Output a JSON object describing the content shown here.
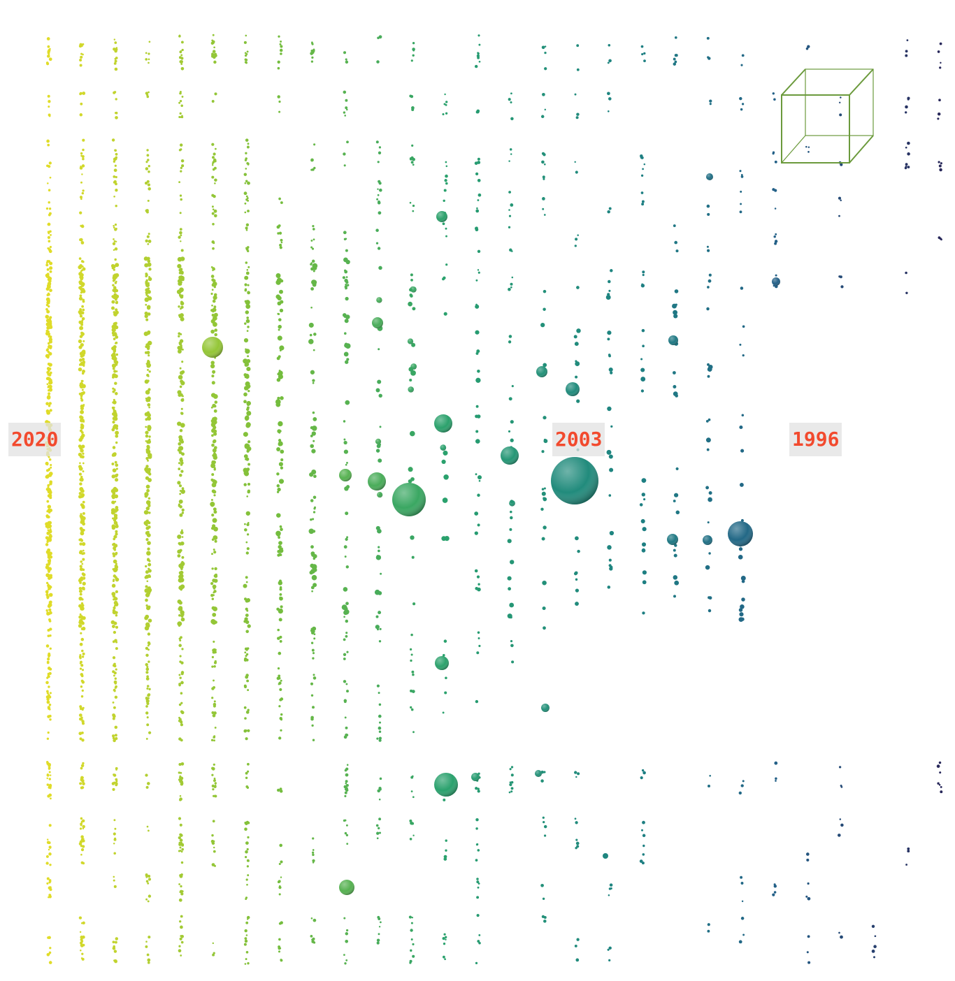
{
  "year_labels": [
    "2020",
    "2003",
    "1996"
  ]
}
